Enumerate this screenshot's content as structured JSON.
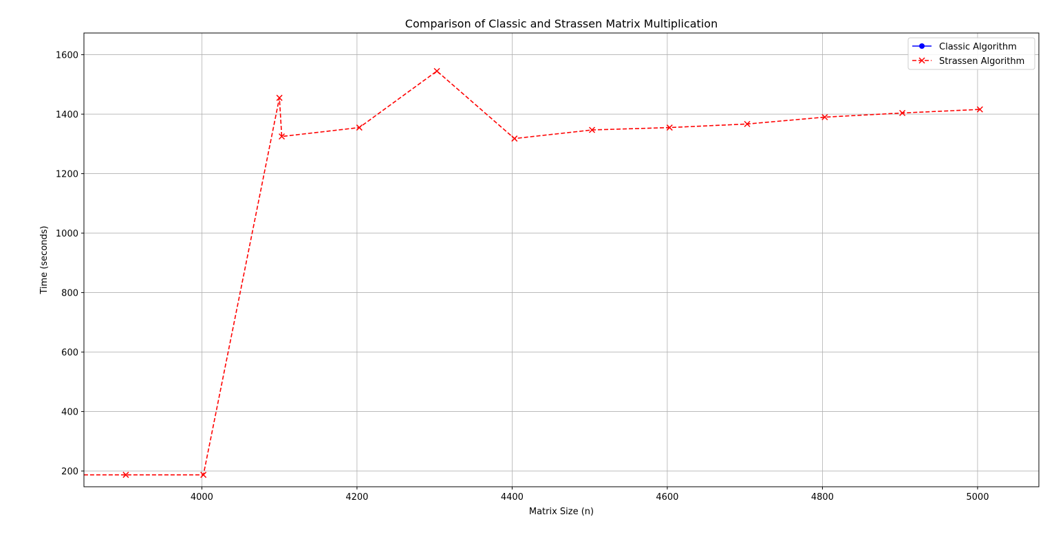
{
  "chart_data": {
    "type": "line",
    "title": "Comparison of Classic and Strassen Matrix Multiplication",
    "xlabel": "Matrix Size (n)",
    "ylabel": "Time (seconds)",
    "xlim": [
      3848,
      5079
    ],
    "ylim": [
      147,
      1673
    ],
    "xticks": [
      4000,
      4200,
      4400,
      4600,
      4800,
      5000
    ],
    "yticks": [
      200,
      400,
      600,
      800,
      1000,
      1200,
      1400,
      1600
    ],
    "grid": true,
    "legend_position": "top-right",
    "series": [
      {
        "name": "Classic Algorithm",
        "color": "#0000ff",
        "line_style": "solid",
        "marker": "circle",
        "x": [],
        "y": []
      },
      {
        "name": "Strassen Algorithm",
        "color": "#ff0000",
        "line_style": "dashed",
        "marker": "x",
        "x": [
          3800,
          3902,
          4002,
          4100,
          4103,
          4203,
          4303,
          4403,
          4503,
          4603,
          4703,
          4803,
          4903,
          5003
        ],
        "y": [
          187,
          187,
          187,
          1455,
          1325,
          1355,
          1545,
          1318,
          1347,
          1355,
          1367,
          1390,
          1404,
          1416
        ]
      }
    ]
  }
}
